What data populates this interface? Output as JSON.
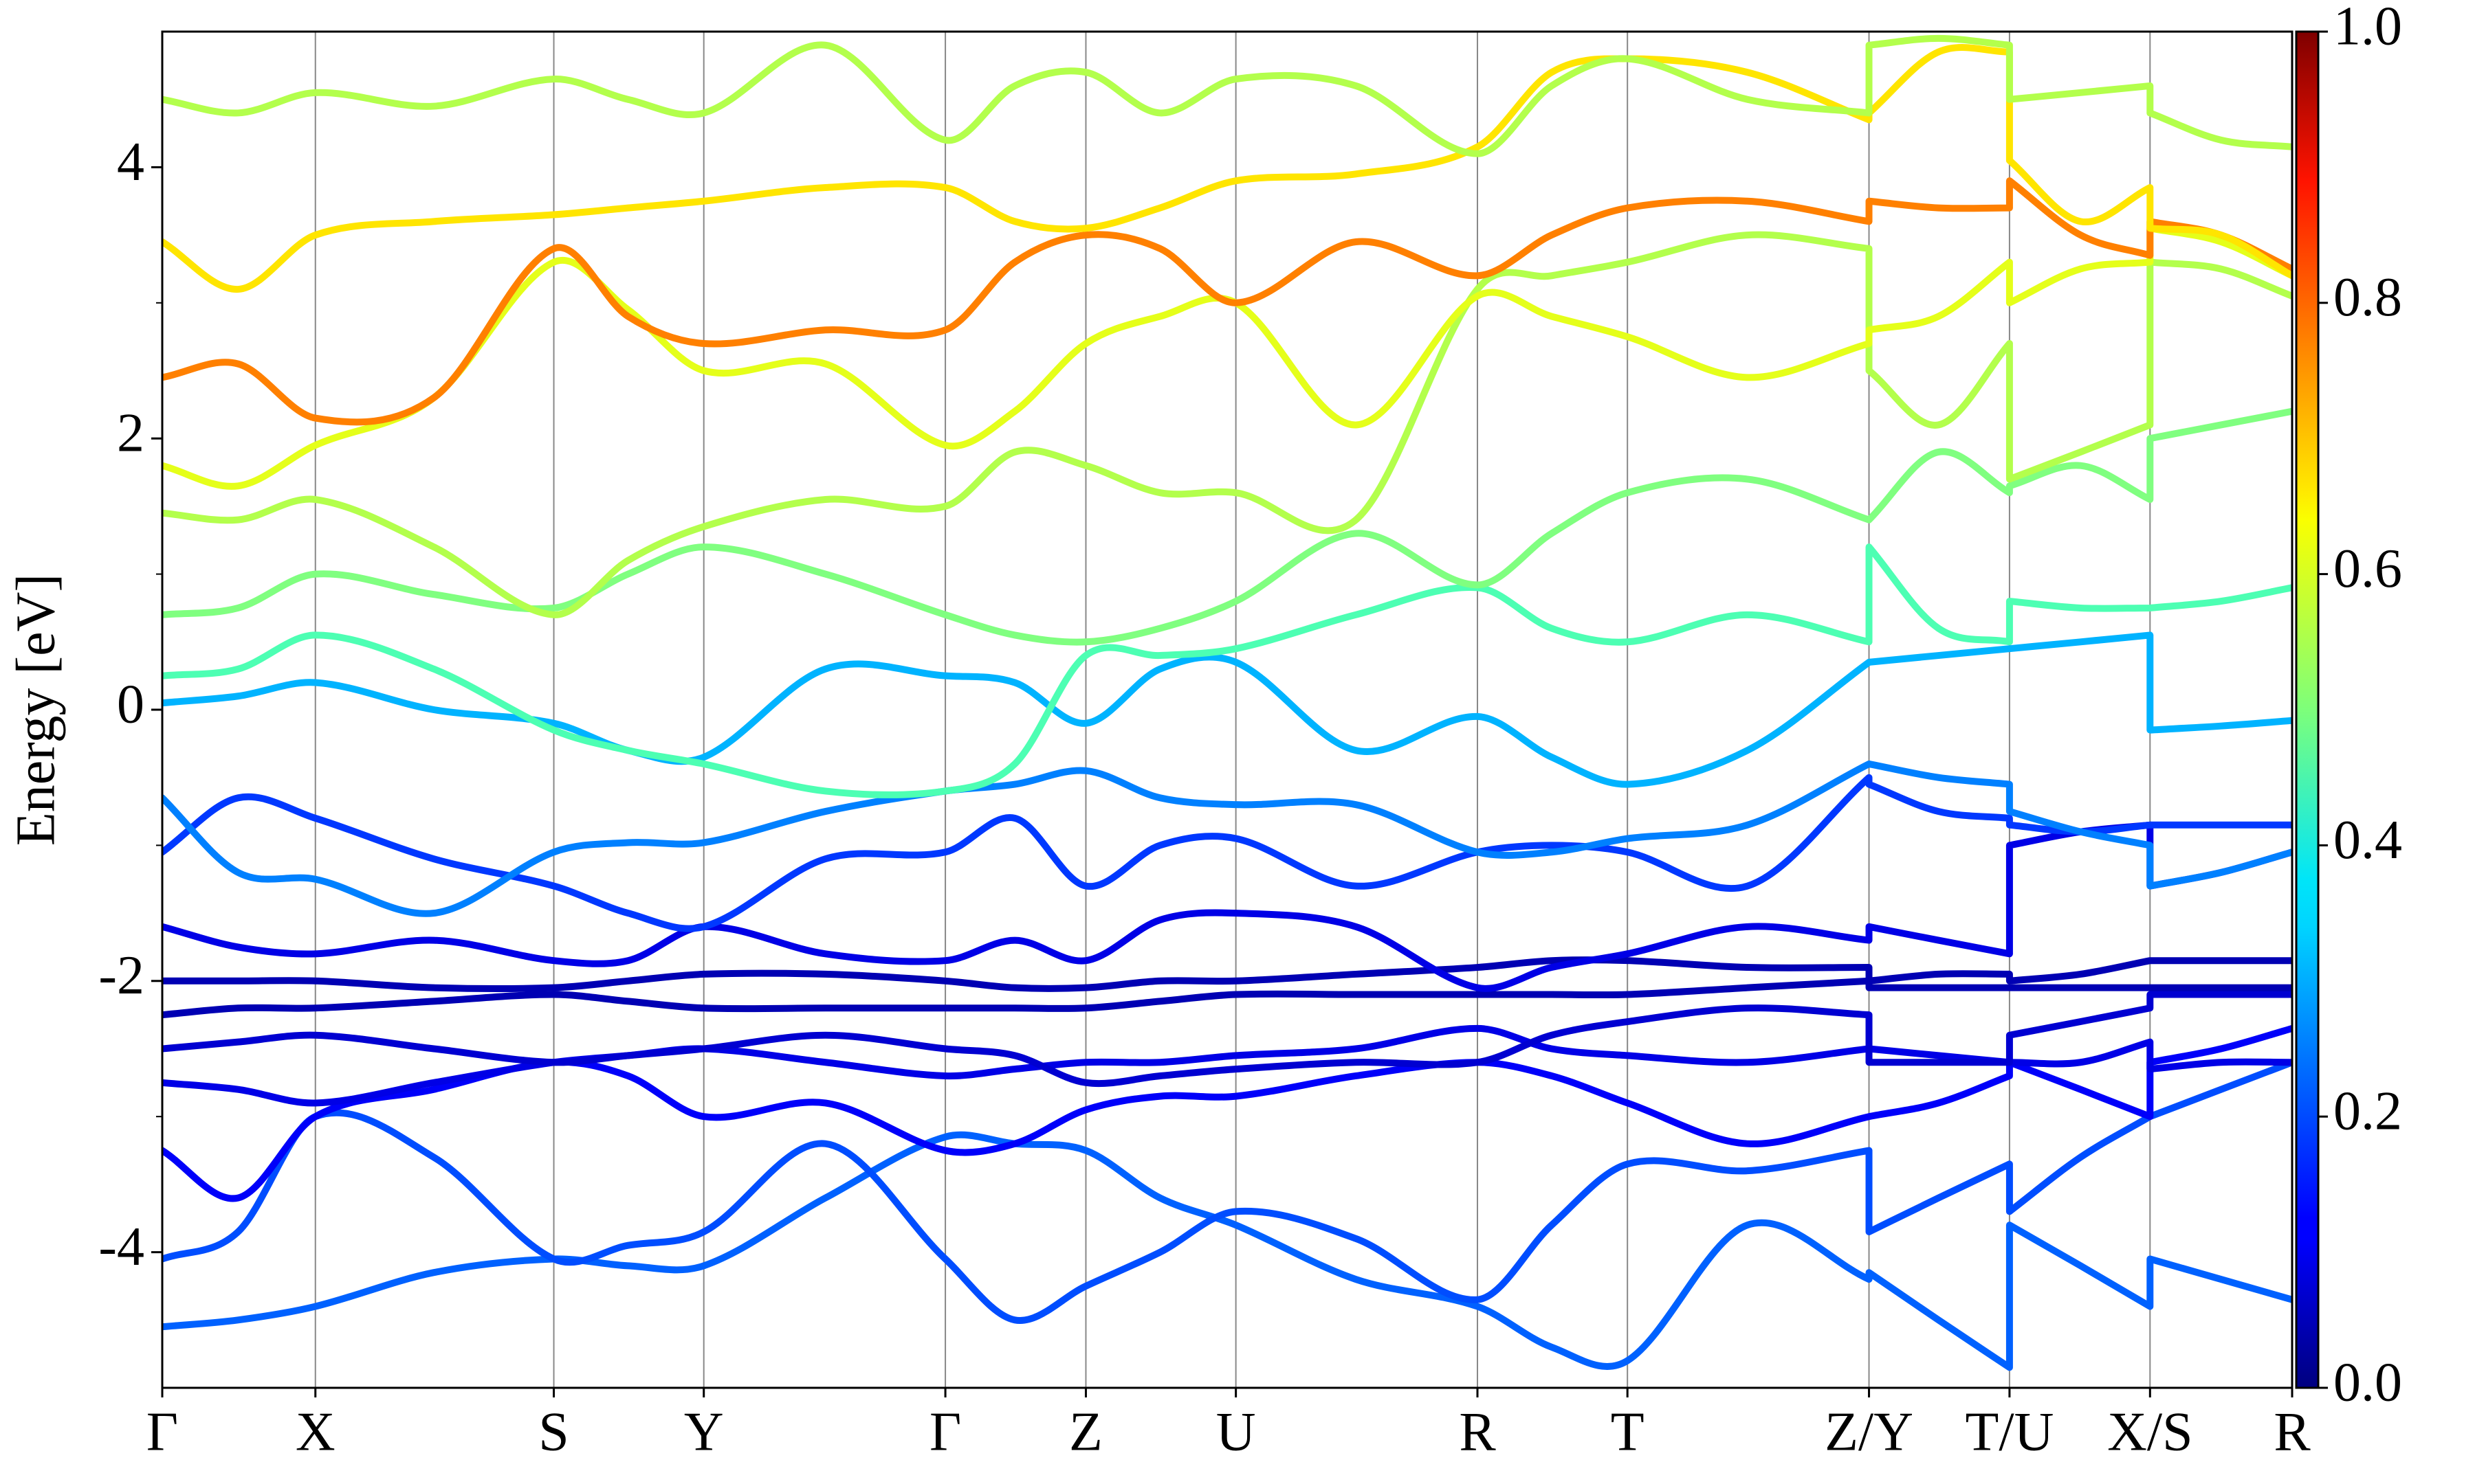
{
  "chart_data": {
    "type": "line",
    "ylabel": "Energy [eV]",
    "xlim": [
      0,
      13.49
    ],
    "ylim": [
      -5,
      5
    ],
    "yticks": [
      -4,
      -2,
      0,
      2,
      4
    ],
    "yminorticks": [
      -3,
      -1,
      1,
      3
    ],
    "xticks": [
      {
        "value": 0,
        "label": "Γ"
      },
      {
        "value": 0.97,
        "label": "X"
      },
      {
        "value": 2.48,
        "label": "S"
      },
      {
        "value": 3.43,
        "label": "Y"
      },
      {
        "value": 4.96,
        "label": "Γ"
      },
      {
        "value": 5.85,
        "label": "Z"
      },
      {
        "value": 6.8,
        "label": "U"
      },
      {
        "value": 8.33,
        "label": "R"
      },
      {
        "value": 9.28,
        "label": "T"
      },
      {
        "value": 10.81,
        "label": "Z/Y"
      },
      {
        "value": 11.7,
        "label": "T/U"
      },
      {
        "value": 12.59,
        "label": "X/S"
      },
      {
        "value": 13.49,
        "label": "R"
      }
    ],
    "grid": true,
    "colormap": "jet",
    "clim": [
      0,
      1
    ],
    "cticks": [
      {
        "value": 0,
        "label": "0.0"
      },
      {
        "value": 0.2,
        "label": "0.2"
      },
      {
        "value": 0.4,
        "label": "0.4"
      },
      {
        "value": 0.6,
        "label": "0.6"
      },
      {
        "value": 0.8,
        "label": "0.8"
      },
      {
        "value": 1,
        "label": "1.0"
      }
    ],
    "x": [
      0,
      0.48,
      0.97,
      1.72,
      2.48,
      2.95,
      3.43,
      4.2,
      4.96,
      5.4,
      5.85,
      6.32,
      6.8,
      7.56,
      8.33,
      8.8,
      9.28,
      10.04,
      10.81,
      10.81,
      11.25,
      11.7,
      11.7,
      12.15,
      12.59,
      12.59,
      13.04,
      13.49
    ],
    "series": [
      {
        "weight": 0.22,
        "values": [
          -4.55,
          -4.5,
          -4.4,
          -4.15,
          -4.05,
          -4.1,
          -4.1,
          -3.6,
          -3.15,
          -3.2,
          -3.25,
          -3.6,
          -3.8,
          -4.2,
          -4.4,
          -4.7,
          -4.8,
          -3.8,
          -4.2,
          -4.15,
          -4.5,
          -4.85,
          -3.8,
          -4.1,
          -4.4,
          -4.05,
          -4.2,
          -4.35
        ]
      },
      {
        "weight": 0.2,
        "values": [
          -4.05,
          -3.85,
          -3.0,
          -3.3,
          -4.05,
          -3.95,
          -3.85,
          -3.2,
          -4.05,
          -4.5,
          -4.25,
          -4.0,
          -3.7,
          -3.9,
          -4.35,
          -3.8,
          -3.35,
          -3.4,
          -3.25,
          -3.85,
          -3.6,
          -3.35,
          -3.7,
          -3.3,
          -3.0,
          -3.0,
          -2.8,
          -2.6
        ]
      },
      {
        "weight": 0.12,
        "values": [
          -3.25,
          -3.6,
          -3.0,
          -2.8,
          -2.6,
          -2.7,
          -3.0,
          -2.9,
          -3.25,
          -3.2,
          -2.95,
          -2.85,
          -2.85,
          -2.7,
          -2.6,
          -2.7,
          -2.9,
          -3.2,
          -3.0,
          -3.0,
          -2.9,
          -2.7,
          -2.6,
          -2.8,
          -3.0,
          -2.6,
          -2.5,
          -2.35
        ]
      },
      {
        "weight": 0.1,
        "values": [
          -2.75,
          -2.8,
          -2.9,
          -2.75,
          -2.6,
          -2.55,
          -2.5,
          -2.6,
          -2.7,
          -2.65,
          -2.6,
          -2.6,
          -2.55,
          -2.5,
          -2.35,
          -2.5,
          -2.55,
          -2.6,
          -2.5,
          -2.5,
          -2.55,
          -2.6,
          -2.6,
          -2.6,
          -2.45,
          -2.65,
          -2.6,
          -2.6
        ]
      },
      {
        "weight": 0.08,
        "values": [
          -2.5,
          -2.45,
          -2.4,
          -2.5,
          -2.6,
          -2.55,
          -2.5,
          -2.4,
          -2.5,
          -2.55,
          -2.75,
          -2.7,
          -2.65,
          -2.6,
          -2.6,
          -2.4,
          -2.3,
          -2.2,
          -2.25,
          -2.6,
          -2.6,
          -2.6,
          -2.4,
          -2.3,
          -2.2,
          -2.1,
          -2.1,
          -2.1
        ]
      },
      {
        "weight": 0.05,
        "values": [
          -2.25,
          -2.2,
          -2.2,
          -2.15,
          -2.1,
          -2.15,
          -2.2,
          -2.2,
          -2.2,
          -2.2,
          -2.2,
          -2.15,
          -2.1,
          -2.1,
          -2.1,
          -2.1,
          -2.1,
          -2.05,
          -2.0,
          -2.05,
          -2.05,
          -2.05,
          -2.05,
          -2.05,
          -2.05,
          -2.05,
          -2.05,
          -2.05
        ]
      },
      {
        "weight": 0.05,
        "values": [
          -2.0,
          -2.0,
          -2.0,
          -2.05,
          -2.05,
          -2.0,
          -1.95,
          -1.95,
          -2.0,
          -2.05,
          -2.05,
          -2.0,
          -2.0,
          -1.95,
          -1.9,
          -1.85,
          -1.85,
          -1.9,
          -1.9,
          -2.0,
          -1.95,
          -1.95,
          -2.0,
          -1.95,
          -1.85,
          -1.85,
          -1.85,
          -1.85
        ]
      },
      {
        "weight": 0.1,
        "values": [
          -1.6,
          -1.75,
          -1.8,
          -1.7,
          -1.85,
          -1.85,
          -1.6,
          -1.8,
          -1.85,
          -1.7,
          -1.85,
          -1.55,
          -1.5,
          -1.6,
          -2.05,
          -1.9,
          -1.8,
          -1.6,
          -1.7,
          -1.6,
          -1.7,
          -1.8,
          -1.0,
          -0.9,
          -0.85,
          -1.3,
          -1.2,
          -1.05
        ]
      },
      {
        "weight": 0.18,
        "values": [
          -1.05,
          -0.65,
          -0.8,
          -1.1,
          -1.3,
          -1.5,
          -1.6,
          -1.1,
          -1.05,
          -0.8,
          -1.3,
          -1.0,
          -0.95,
          -1.3,
          -1.05,
          -1.0,
          -1.05,
          -1.3,
          -0.5,
          -0.55,
          -0.75,
          -0.8,
          -0.85,
          -0.9,
          -0.85,
          -0.85,
          -0.85,
          -0.85
        ]
      },
      {
        "weight": 0.25,
        "values": [
          -0.65,
          -1.2,
          -1.25,
          -1.5,
          -1.05,
          -0.98,
          -0.98,
          -0.75,
          -0.6,
          -0.55,
          -0.45,
          -0.65,
          -0.7,
          -0.7,
          -1.05,
          -1.05,
          -0.95,
          -0.85,
          -0.4,
          -0.4,
          -0.5,
          -0.55,
          -0.75,
          -0.9,
          -1.0,
          -1.3,
          -1.2,
          -1.05
        ]
      },
      {
        "weight": 0.3,
        "values": [
          0.05,
          0.1,
          0.2,
          0.0,
          -0.1,
          -0.3,
          -0.35,
          0.3,
          0.25,
          0.2,
          -0.1,
          0.3,
          0.35,
          -0.3,
          -0.05,
          -0.35,
          -0.55,
          -0.3,
          0.35,
          0.35,
          0.4,
          0.45,
          0.45,
          0.5,
          0.55,
          -0.15,
          -0.12,
          -0.08
        ]
      },
      {
        "weight": 0.45,
        "values": [
          0.25,
          0.3,
          0.55,
          0.3,
          -0.15,
          -0.3,
          -0.4,
          -0.6,
          -0.6,
          -0.4,
          0.4,
          0.4,
          0.45,
          0.7,
          0.9,
          0.6,
          0.5,
          0.7,
          0.5,
          1.2,
          0.6,
          0.5,
          0.8,
          0.75,
          0.75,
          0.75,
          0.8,
          0.9
        ]
      },
      {
        "weight": 0.5,
        "values": [
          0.7,
          0.75,
          1.0,
          0.85,
          0.75,
          1.0,
          1.2,
          1.0,
          0.7,
          0.55,
          0.5,
          0.6,
          0.8,
          1.3,
          0.92,
          1.3,
          1.6,
          1.7,
          1.4,
          1.4,
          1.9,
          1.6,
          1.65,
          1.8,
          1.55,
          2.0,
          2.1,
          2.2
        ]
      },
      {
        "weight": 0.55,
        "values": [
          1.45,
          1.4,
          1.55,
          1.2,
          0.7,
          1.1,
          1.35,
          1.55,
          1.5,
          1.9,
          1.8,
          1.6,
          1.6,
          1.4,
          3.1,
          3.2,
          3.3,
          3.5,
          3.4,
          2.5,
          2.1,
          2.7,
          1.7,
          1.9,
          2.1,
          3.3,
          3.25,
          3.05
        ]
      },
      {
        "weight": 0.6,
        "values": [
          1.8,
          1.65,
          1.95,
          2.3,
          3.3,
          2.95,
          2.5,
          2.55,
          1.95,
          2.2,
          2.7,
          2.9,
          3.0,
          2.1,
          3.05,
          2.9,
          2.75,
          2.45,
          2.7,
          2.8,
          2.9,
          3.3,
          3.0,
          3.25,
          3.3,
          3.55,
          3.45,
          3.2
        ]
      },
      {
        "weight": 0.75,
        "values": [
          2.45,
          2.55,
          2.15,
          2.3,
          3.4,
          2.9,
          2.7,
          2.8,
          2.8,
          3.3,
          3.5,
          3.4,
          3.0,
          3.45,
          3.2,
          3.5,
          3.7,
          3.75,
          3.6,
          3.75,
          3.7,
          3.7,
          3.9,
          3.5,
          3.35,
          3.6,
          3.5,
          3.25
        ]
      },
      {
        "weight": 0.65,
        "values": [
          3.45,
          3.1,
          3.5,
          3.6,
          3.65,
          3.7,
          3.75,
          3.85,
          3.85,
          3.6,
          3.55,
          3.7,
          3.9,
          3.95,
          4.15,
          4.7,
          4.8,
          4.7,
          4.35,
          4.4,
          4.85,
          4.85,
          4.05,
          3.6,
          3.85,
          3.55,
          3.5,
          3.2
        ]
      },
      {
        "weight": 0.55,
        "values": [
          4.5,
          4.4,
          4.55,
          4.45,
          4.65,
          4.5,
          4.4,
          4.9,
          4.2,
          4.6,
          4.7,
          4.4,
          4.65,
          4.6,
          4.1,
          4.6,
          4.8,
          4.5,
          4.4,
          4.9,
          4.95,
          4.9,
          4.5,
          4.55,
          4.6,
          4.4,
          4.2,
          4.15
        ]
      }
    ]
  }
}
